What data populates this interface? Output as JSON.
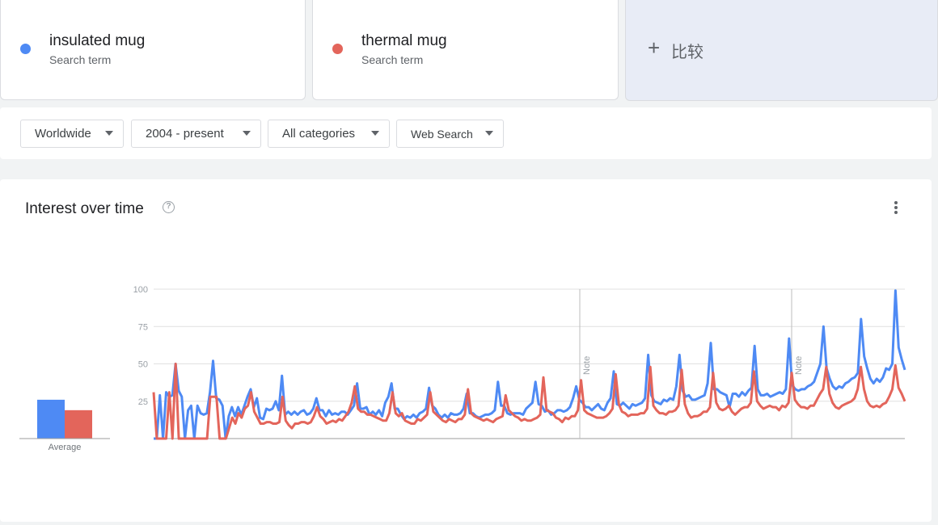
{
  "terms": [
    {
      "name": "insulated mug",
      "subtitle": "Search term",
      "color": "#4e8af4"
    },
    {
      "name": "thermal mug",
      "subtitle": "Search term",
      "color": "#e3655b"
    }
  ],
  "compare": {
    "icon": "plus-icon",
    "label": "比较"
  },
  "filters": {
    "region": "Worldwide",
    "time": "2004 - present",
    "category": "All categories",
    "search_type": "Web Search"
  },
  "panel": {
    "title": "Interest over time",
    "help_icon": "help-circle-icon",
    "menu_icon": "more-vert-icon"
  },
  "chart_data": {
    "type": "line",
    "y_ticks": [
      "100",
      "75",
      "50",
      "25"
    ],
    "ylim": [
      0,
      100
    ],
    "grid": true,
    "notes": [
      "Note",
      "Note"
    ],
    "average_label": "Average",
    "averages": [
      {
        "series": "insulated mug",
        "value": 26
      },
      {
        "series": "thermal mug",
        "value": 19
      }
    ],
    "series": [
      {
        "name": "insulated mug",
        "color": "#4e8af4",
        "values": [
          0,
          0,
          29,
          0,
          31,
          28,
          29,
          50,
          32,
          28,
          0,
          19,
          22,
          0,
          22,
          17,
          16,
          17,
          31,
          52,
          27,
          26,
          22,
          0,
          15,
          21,
          15,
          21,
          16,
          22,
          28,
          33,
          21,
          27,
          14,
          13,
          20,
          19,
          20,
          25,
          19,
          42,
          16,
          18,
          16,
          18,
          16,
          18,
          19,
          16,
          17,
          20,
          27,
          19,
          19,
          15,
          19,
          16,
          17,
          16,
          18,
          18,
          16,
          19,
          22,
          37,
          20,
          20,
          21,
          16,
          18,
          16,
          19,
          15,
          24,
          28,
          37,
          20,
          20,
          16,
          13,
          15,
          14,
          16,
          14,
          17,
          18,
          20,
          34,
          22,
          20,
          16,
          14,
          16,
          14,
          17,
          16,
          16,
          17,
          20,
          30,
          17,
          17,
          15,
          14,
          15,
          16,
          16,
          17,
          19,
          38,
          22,
          22,
          17,
          16,
          17,
          17,
          17,
          16,
          20,
          22,
          24,
          38,
          23,
          22,
          18,
          19,
          16,
          17,
          19,
          19,
          18,
          19,
          21,
          27,
          35,
          26,
          24,
          21,
          21,
          19,
          21,
          23,
          20,
          19,
          24,
          27,
          45,
          23,
          22,
          24,
          22,
          20,
          23,
          22,
          23,
          24,
          27,
          56,
          29,
          25,
          24,
          23,
          26,
          25,
          27,
          26,
          35,
          56,
          32,
          28,
          29,
          26,
          26,
          27,
          28,
          29,
          37,
          64,
          33,
          33,
          31,
          30,
          29,
          21,
          30,
          30,
          28,
          31,
          29,
          32,
          34,
          62,
          33,
          29,
          29,
          30,
          28,
          29,
          30,
          31,
          30,
          33,
          67,
          36,
          33,
          32,
          33,
          33,
          35,
          36,
          38,
          44,
          50,
          75,
          47,
          40,
          35,
          33,
          35,
          34,
          37,
          38,
          40,
          41,
          44,
          80,
          55,
          47,
          40,
          37,
          40,
          38,
          41,
          47,
          46,
          50,
          99,
          61,
          53,
          46
        ]
      },
      {
        "name": "thermal mug",
        "color": "#e3655b",
        "values": [
          31,
          0,
          0,
          0,
          0,
          31,
          0,
          50,
          0,
          0,
          0,
          0,
          0,
          0,
          0,
          0,
          0,
          0,
          28,
          28,
          28,
          0,
          0,
          0,
          7,
          14,
          10,
          17,
          14,
          20,
          22,
          31,
          18,
          14,
          10,
          10,
          11,
          11,
          10,
          10,
          11,
          28,
          12,
          9,
          7,
          10,
          10,
          11,
          11,
          10,
          11,
          15,
          21,
          15,
          13,
          10,
          11,
          12,
          11,
          13,
          12,
          15,
          18,
          24,
          35,
          20,
          18,
          18,
          16,
          16,
          15,
          14,
          13,
          12,
          12,
          17,
          31,
          17,
          15,
          17,
          12,
          11,
          10,
          10,
          13,
          12,
          14,
          16,
          31,
          18,
          16,
          14,
          12,
          11,
          13,
          12,
          11,
          13,
          13,
          16,
          33,
          17,
          15,
          14,
          13,
          12,
          13,
          12,
          11,
          13,
          14,
          15,
          29,
          19,
          17,
          15,
          14,
          12,
          13,
          12,
          12,
          13,
          14,
          16,
          41,
          19,
          18,
          17,
          14,
          13,
          11,
          14,
          13,
          15,
          15,
          19,
          39,
          19,
          17,
          16,
          15,
          14,
          14,
          14,
          15,
          17,
          20,
          43,
          23,
          18,
          17,
          15,
          16,
          16,
          16,
          17,
          17,
          20,
          48,
          22,
          19,
          17,
          17,
          16,
          18,
          18,
          19,
          22,
          46,
          23,
          17,
          14,
          15,
          15,
          16,
          18,
          18,
          21,
          44,
          24,
          20,
          19,
          20,
          22,
          18,
          16,
          18,
          20,
          21,
          21,
          24,
          45,
          25,
          22,
          20,
          21,
          22,
          21,
          21,
          19,
          22,
          21,
          24,
          44,
          26,
          23,
          21,
          21,
          20,
          22,
          22,
          26,
          30,
          33,
          48,
          30,
          24,
          21,
          20,
          22,
          23,
          24,
          25,
          27,
          33,
          48,
          33,
          25,
          22,
          21,
          22,
          21,
          23,
          24,
          28,
          33,
          49,
          34,
          30,
          25
        ]
      }
    ]
  }
}
